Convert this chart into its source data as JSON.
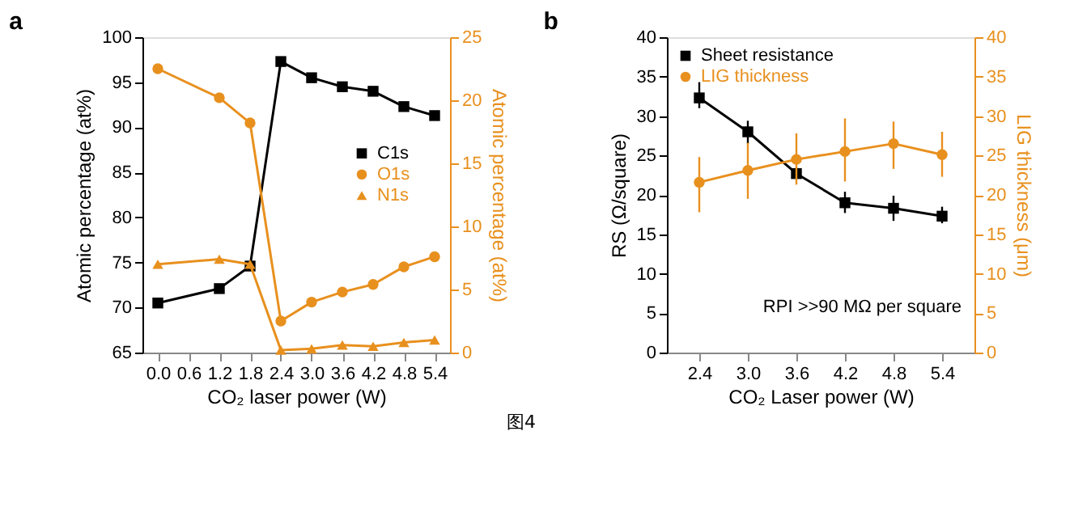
{
  "chart_data": [
    {
      "type": "line",
      "title": "a",
      "xlabel": "CO₂ laser power (W)",
      "ylabel": "Atomic percentage (at%)",
      "y2label": "Atomic percentage (at%)",
      "x": [
        0,
        1.2,
        1.8,
        2.4,
        3.0,
        3.6,
        4.2,
        4.8,
        5.4
      ],
      "series": [
        {
          "name": "C1s",
          "color": "#000000",
          "marker": "square",
          "values": [
            70.5,
            72.1,
            74.6,
            97.3,
            95.5,
            94.5,
            94.0,
            92.3,
            91.3
          ]
        },
        {
          "name": "O1s",
          "color": "#e8901e",
          "marker": "circle",
          "axis": "y2",
          "values": [
            22.5,
            20.2,
            18.2,
            2.5,
            4.0,
            4.8,
            5.4,
            6.8,
            7.6
          ]
        },
        {
          "name": "N1s",
          "color": "#e8901e",
          "marker": "triangle",
          "axis": "y2",
          "values": [
            7.0,
            7.4,
            7.0,
            0.2,
            0.3,
            0.6,
            0.5,
            0.8,
            1.0
          ]
        }
      ],
      "xlim": [
        -0.3,
        5.7
      ],
      "xticks": [
        {
          "value": 0,
          "label": "0.0"
        },
        {
          "value": 0.6,
          "label": "0.6"
        },
        {
          "value": 1.2,
          "label": "1.2"
        },
        {
          "value": 1.8,
          "label": "1.8"
        },
        {
          "value": 2.4,
          "label": "2.4"
        },
        {
          "value": 3.0,
          "label": "3.0"
        },
        {
          "value": 3.6,
          "label": "3.6"
        },
        {
          "value": 4.2,
          "label": "4.2"
        },
        {
          "value": 4.8,
          "label": "4.8"
        },
        {
          "value": 5.4,
          "label": "5.4"
        }
      ],
      "ylim": [
        65,
        100
      ],
      "yticks": [
        65,
        70,
        75,
        80,
        85,
        90,
        95,
        100
      ],
      "y2lim": [
        0,
        25
      ],
      "y2ticks": [
        0,
        5,
        10,
        15,
        20,
        25
      ],
      "legend": "right",
      "grid": false
    },
    {
      "type": "line",
      "title": "b",
      "xlabel": "CO₂ Laser power (W)",
      "ylabel": "RS (Ω/square)",
      "y2label": "LIG thickness (μm)",
      "x": [
        2.4,
        3.0,
        3.6,
        4.2,
        4.8,
        5.4
      ],
      "series": [
        {
          "name": "Sheet resistance",
          "color": "#000000",
          "marker": "square",
          "values": [
            32.3,
            28.0,
            22.7,
            19.0,
            18.3,
            17.3
          ],
          "errors": [
            [
              31.0,
              34.3
            ],
            [
              26.5,
              29.4
            ],
            [
              22.0,
              23.5
            ],
            [
              17.7,
              20.4
            ],
            [
              16.7,
              19.9
            ],
            [
              16.4,
              18.5
            ]
          ]
        },
        {
          "name": "LIG thickness",
          "color": "#e8901e",
          "marker": "circle",
          "axis": "y2",
          "values": [
            21.6,
            23.1,
            24.5,
            25.5,
            26.5,
            25.1
          ],
          "errors": [
            [
              17.8,
              24.8
            ],
            [
              19.5,
              26.6
            ],
            [
              21.3,
              27.8
            ],
            [
              21.7,
              29.7
            ],
            [
              23.3,
              29.3
            ],
            [
              22.3,
              28.0
            ]
          ]
        }
      ],
      "xlim": [
        2.0,
        5.8
      ],
      "xticks": [
        {
          "value": 2.4,
          "label": "2.4"
        },
        {
          "value": 3.0,
          "label": "3.0"
        },
        {
          "value": 3.6,
          "label": "3.6"
        },
        {
          "value": 4.2,
          "label": "4.2"
        },
        {
          "value": 4.8,
          "label": "4.8"
        },
        {
          "value": 5.4,
          "label": "5.4"
        }
      ],
      "ylim": [
        0,
        40
      ],
      "yticks": [
        0,
        5,
        10,
        15,
        20,
        25,
        30,
        35,
        40
      ],
      "y2lim": [
        0,
        40
      ],
      "y2ticks": [
        0,
        5,
        10,
        15,
        20,
        25,
        30,
        35,
        40
      ],
      "annotations": [
        "RPI >>90 MΩ per square",
        "图4"
      ],
      "legend": "top left",
      "grid": false
    }
  ]
}
